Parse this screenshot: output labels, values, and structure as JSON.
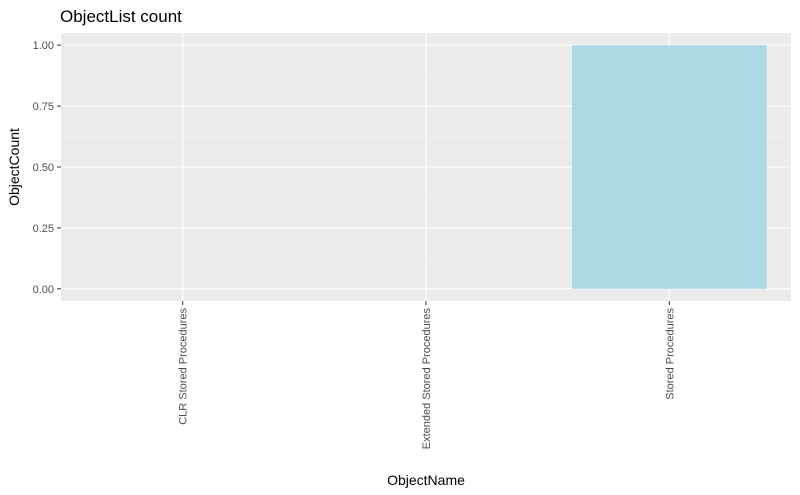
{
  "chart_data": {
    "type": "bar",
    "title": "ObjectList count",
    "xlabel": "ObjectName",
    "ylabel": "ObjectCount",
    "categories": [
      "CLR Stored Procedures",
      "Extended Stored Procedures",
      "Stored Procedures"
    ],
    "values": [
      0,
      0,
      1
    ],
    "ylim": [
      -0.05,
      1.05
    ],
    "yticks": [
      0,
      0.25,
      0.5,
      0.75,
      1
    ],
    "ytick_labels": [
      "0.00",
      "0.25",
      "0.50",
      "0.75",
      "1.00"
    ],
    "grid": true,
    "legend": "none",
    "colors": {
      "bar": "#add8e6",
      "panel": "#ebebeb",
      "grid_major": "#ffffff",
      "grid_minor": "#f5f5f5",
      "tick": "#333333"
    }
  }
}
